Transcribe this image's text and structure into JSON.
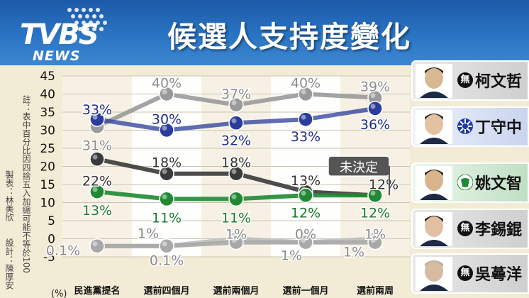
{
  "header": {
    "logo_main": "TVBS",
    "logo_sub": "NEWS",
    "title": "候選人支持度變化"
  },
  "notes": {
    "footnote": "註：表中百分比因四捨五入加總可能不等於100",
    "producer": "製表：林美欣",
    "designer": "設計：陳厚安"
  },
  "candidates": [
    {
      "name": "柯文哲",
      "party_icon": "wu-badge",
      "party_text": "無"
    },
    {
      "name": "丁守中",
      "party_icon": "kmt-sun-badge",
      "party_text": ""
    },
    {
      "name": "姚文智",
      "party_icon": "dpp-badge",
      "party_text": ""
    },
    {
      "name": "李錫錕",
      "party_icon": "wu-badge",
      "party_text": "無"
    },
    {
      "name": "吳蕚洋",
      "party_icon": "wu-badge",
      "party_text": "無"
    }
  ],
  "chart_data": {
    "type": "line",
    "categories": [
      "民進黨提名",
      "選前四個月",
      "選前兩個月",
      "選前一個月",
      "選前兩周"
    ],
    "ylim": [
      -5,
      45
    ],
    "yticks": [
      -5,
      0,
      5,
      10,
      15,
      20,
      25,
      30,
      35,
      40,
      45
    ],
    "y_unit_label": "(%)",
    "grid": true,
    "series": [
      {
        "name": "柯文哲",
        "values": [
          31,
          40,
          37,
          40,
          39
        ],
        "labels": [
          "31%",
          "40%",
          "37%",
          "40%",
          "39%"
        ],
        "color": "#9a9a9a"
      },
      {
        "name": "丁守中",
        "values": [
          33,
          30,
          32,
          33,
          36
        ],
        "labels": [
          "33%",
          "30%",
          "32%",
          "33%",
          "36%"
        ],
        "color": "#2a3c9c"
      },
      {
        "name": "姚文智",
        "values": [
          13,
          11,
          11,
          12,
          12
        ],
        "labels": [
          "13%",
          "11%",
          "11%",
          "12%",
          "12%"
        ],
        "color": "#1f8a33"
      },
      {
        "name": "未決定",
        "values": [
          22,
          18,
          18,
          13,
          12
        ],
        "labels": [
          "22%",
          "18%",
          "18%",
          "13%",
          "12%"
        ],
        "color": "#3a3a3a"
      },
      {
        "name": "李錫錕",
        "values": [
          -2,
          -2,
          -1,
          -1,
          -1
        ],
        "labels": [
          "0.1%",
          "0.1%",
          "1%",
          "0%",
          "1%"
        ],
        "color": "#a8a8a8"
      },
      {
        "name": "吳蕚洋",
        "values": [
          -2,
          -2,
          0,
          -1,
          0
        ],
        "labels": [
          "",
          "1%",
          "",
          "1%",
          "1%"
        ],
        "color": "#bdbdbd"
      }
    ],
    "annotation": "未決定"
  }
}
